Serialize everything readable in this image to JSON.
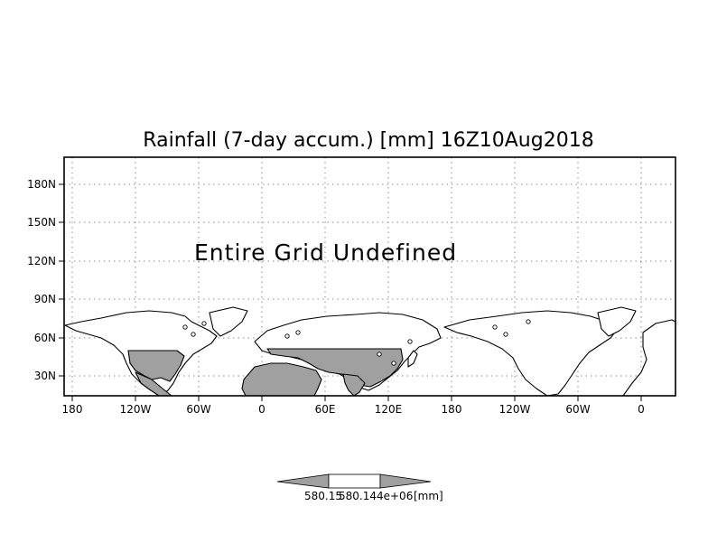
{
  "title": "Rainfall (7-day accum.) [mm] 16Z10Aug2018",
  "message": "Entire Grid Undefined",
  "map": {
    "projection": "cylindrical equidistant (latitude stretched)",
    "longitude_range": [
      "180",
      "0 (repeat)"
    ],
    "y_ticks": [
      "180N",
      "150N",
      "120N",
      "90N",
      "60N",
      "30N"
    ],
    "x_ticks": [
      "180",
      "120W",
      "60W",
      "0",
      "60E",
      "120E",
      "180",
      "120W",
      "60W",
      "0"
    ],
    "gridlines": "dotted",
    "colors": {
      "frame": "#000000",
      "grid": "#8c8c8c",
      "coastline": "#000000",
      "shaded_land": "#a0a0a0",
      "background": "#ffffff"
    }
  },
  "colorbar": {
    "labels": [
      "580.15",
      "580.144e+06",
      "[mm]"
    ],
    "colors": {
      "left": "#a0a0a0",
      "middle": "#ffffff",
      "right": "#a0a0a0"
    }
  }
}
